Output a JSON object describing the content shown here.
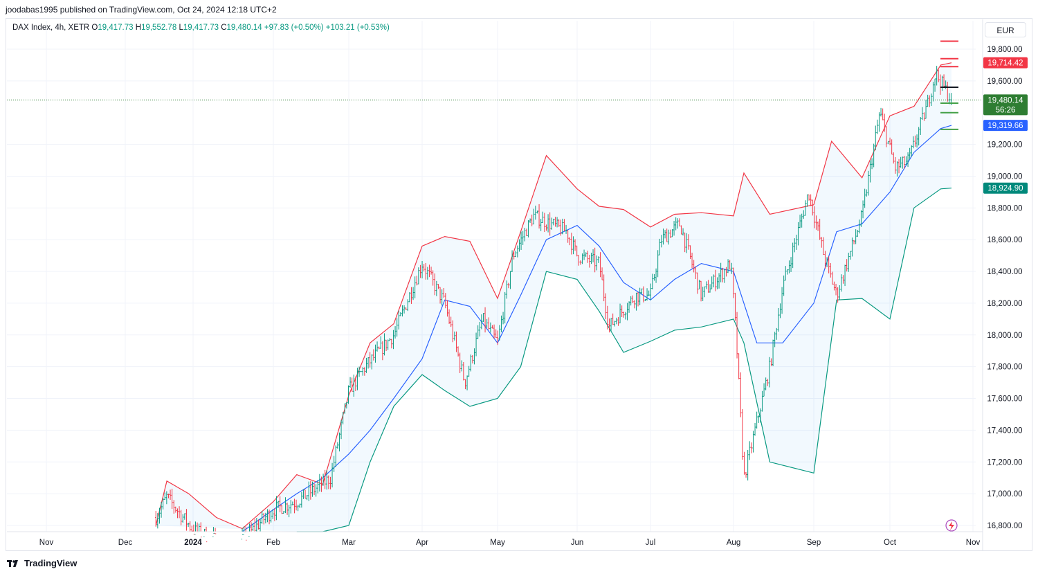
{
  "header": {
    "published": "joodabas1995 published on TradingView.com, Oct 24, 2024 12:18 UTC+2"
  },
  "legend": {
    "symbol": "DAX Index, 4h, XETR",
    "o_label": "O",
    "o": "19,417.73",
    "h_label": "H",
    "h": "19,552.78",
    "l_label": "L",
    "l": "19,417.73",
    "c_label": "C",
    "c": "19,480.14",
    "change": "+97.83 (+0.50%)",
    "change2": "+103.21 (+0.53%)"
  },
  "currency": "EUR",
  "footer": {
    "brand": "TradingView",
    "logo": "tradingview-logo-icon"
  },
  "colors": {
    "up": "#089981",
    "down": "#f23645",
    "upper_band": "#f23645",
    "basis": "#2962ff",
    "lower_band": "#089981",
    "fill": "#2196f31a",
    "price_label": "#2e7d32",
    "blue_label": "#2962ff",
    "red_label": "#f23645",
    "teal_label": "#00897b"
  },
  "price_labels": {
    "upper": "19,714.42",
    "last": "19,480.14",
    "countdown": "56:26",
    "basis": "19,319.66",
    "lower": "18,924.90"
  },
  "chart_data": {
    "type": "candlestick",
    "title": "DAX Index, 4h, XETR",
    "currency": "EUR",
    "ylim": [
      16750,
      19950
    ],
    "y_ticks": [
      "19,800.00",
      "19,600.00",
      "19,200.00",
      "19,000.00",
      "18,800.00",
      "18,600.00",
      "18,400.00",
      "18,200.00",
      "18,000.00",
      "17,800.00",
      "17,600.00",
      "17,400.00",
      "17,200.00",
      "17,000.00",
      "16,800.00"
    ],
    "y_tick_values": [
      19800,
      19600,
      19200,
      19000,
      18800,
      18600,
      18400,
      18200,
      18000,
      17800,
      17600,
      17400,
      17200,
      17000,
      16800
    ],
    "x_labels": [
      "Nov",
      "Dec",
      "2024",
      "Feb",
      "Mar",
      "Apr",
      "May",
      "Jun",
      "Jul",
      "Aug",
      "Sep",
      "Oct",
      "Nov"
    ],
    "x_label_dates": [
      "2023-11-01",
      "2023-12-01",
      "2024-01-01",
      "2024-02-01",
      "2024-03-01",
      "2024-04-01",
      "2024-05-01",
      "2024-06-01",
      "2024-07-01",
      "2024-08-01",
      "2024-09-01",
      "2024-10-01",
      "2024-11-01"
    ],
    "indicator": "Bollinger Bands",
    "series": [
      {
        "name": "Upper band",
        "x": [
          "2023-12-15",
          "2023-12-20",
          "2023-12-30",
          "2024-01-10",
          "2024-01-20",
          "2024-02-01",
          "2024-02-10",
          "2024-02-20",
          "2024-03-01",
          "2024-03-10",
          "2024-03-20",
          "2024-04-01",
          "2024-04-10",
          "2024-04-20",
          "2024-05-01",
          "2024-05-10",
          "2024-05-20",
          "2024-06-01",
          "2024-06-10",
          "2024-06-20",
          "2024-07-01",
          "2024-07-10",
          "2024-07-20",
          "2024-08-01",
          "2024-08-05",
          "2024-08-15",
          "2024-09-01",
          "2024-09-08",
          "2024-09-20",
          "2024-10-01",
          "2024-10-10",
          "2024-10-20",
          "2024-10-24"
        ],
        "values": [
          16800,
          17080,
          17000,
          16850,
          16780,
          16950,
          17120,
          17060,
          17620,
          17950,
          18070,
          18560,
          18620,
          18590,
          18230,
          18650,
          19130,
          18920,
          18810,
          18790,
          18680,
          18760,
          18770,
          18750,
          19020,
          18760,
          18820,
          19220,
          18990,
          19380,
          19440,
          19700,
          19714
        ]
      },
      {
        "name": "Basis",
        "x": [
          "2024-01-20",
          "2024-02-01",
          "2024-02-10",
          "2024-02-20",
          "2024-03-01",
          "2024-03-10",
          "2024-03-20",
          "2024-04-01",
          "2024-04-10",
          "2024-04-20",
          "2024-05-01",
          "2024-05-10",
          "2024-05-20",
          "2024-06-01",
          "2024-06-10",
          "2024-06-20",
          "2024-07-01",
          "2024-07-10",
          "2024-07-20",
          "2024-08-01",
          "2024-08-10",
          "2024-08-20",
          "2024-09-01",
          "2024-09-10",
          "2024-09-20",
          "2024-10-01",
          "2024-10-10",
          "2024-10-20",
          "2024-10-24"
        ],
        "values": [
          16750,
          16900,
          17000,
          17100,
          17250,
          17400,
          17600,
          17850,
          18220,
          18180,
          17950,
          18250,
          18600,
          18690,
          18560,
          18330,
          18220,
          18350,
          18450,
          18400,
          17950,
          17950,
          18200,
          18650,
          18700,
          18900,
          19150,
          19300,
          19320
        ]
      },
      {
        "name": "Lower band",
        "x": [
          "2024-02-10",
          "2024-02-20",
          "2024-03-01",
          "2024-03-10",
          "2024-03-20",
          "2024-04-01",
          "2024-04-10",
          "2024-04-20",
          "2024-05-01",
          "2024-05-10",
          "2024-05-20",
          "2024-06-01",
          "2024-06-10",
          "2024-06-20",
          "2024-07-01",
          "2024-07-10",
          "2024-07-20",
          "2024-08-01",
          "2024-08-05",
          "2024-08-15",
          "2024-09-01",
          "2024-09-10",
          "2024-09-20",
          "2024-10-01",
          "2024-10-10",
          "2024-10-20",
          "2024-10-24"
        ],
        "values": [
          16750,
          16750,
          16800,
          17200,
          17550,
          17750,
          17650,
          17550,
          17600,
          17800,
          18400,
          18350,
          18150,
          17890,
          17960,
          18030,
          18050,
          18100,
          17950,
          17200,
          17130,
          18220,
          18230,
          18100,
          18800,
          18920,
          18925
        ]
      }
    ],
    "candles_summary": {
      "start_date": "2023-12-15",
      "end_date": "2024-10-24",
      "approx_path": [
        [
          "2023-12-15",
          16850
        ],
        [
          "2023-12-20",
          16980
        ],
        [
          "2024-01-01",
          16770
        ],
        [
          "2024-01-17",
          16660
        ],
        [
          "2024-02-01",
          16900
        ],
        [
          "2024-02-10",
          16950
        ],
        [
          "2024-02-23",
          17100
        ],
        [
          "2024-03-01",
          17650
        ],
        [
          "2024-03-08",
          17800
        ],
        [
          "2024-03-20",
          18000
        ],
        [
          "2024-04-01",
          18450
        ],
        [
          "2024-04-10",
          18200
        ],
        [
          "2024-04-18",
          17700
        ],
        [
          "2024-04-25",
          18100
        ],
        [
          "2024-05-01",
          17950
        ],
        [
          "2024-05-07",
          18500
        ],
        [
          "2024-05-15",
          18750
        ],
        [
          "2024-05-28",
          18650
        ],
        [
          "2024-06-01",
          18500
        ],
        [
          "2024-06-10",
          18450
        ],
        [
          "2024-06-14",
          18050
        ],
        [
          "2024-06-25",
          18250
        ],
        [
          "2024-07-01",
          18250
        ],
        [
          "2024-07-05",
          18600
        ],
        [
          "2024-07-12",
          18700
        ],
        [
          "2024-07-20",
          18250
        ],
        [
          "2024-07-31",
          18450
        ],
        [
          "2024-08-02",
          18000
        ],
        [
          "2024-08-05",
          17100
        ],
        [
          "2024-08-15",
          17800
        ],
        [
          "2024-08-20",
          18300
        ],
        [
          "2024-08-30",
          18900
        ],
        [
          "2024-09-05",
          18500
        ],
        [
          "2024-09-10",
          18250
        ],
        [
          "2024-09-20",
          18750
        ],
        [
          "2024-09-27",
          19400
        ],
        [
          "2024-10-03",
          19050
        ],
        [
          "2024-10-08",
          19100
        ],
        [
          "2024-10-15",
          19450
        ],
        [
          "2024-10-18",
          19650
        ],
        [
          "2024-10-24",
          19480
        ]
      ]
    }
  }
}
